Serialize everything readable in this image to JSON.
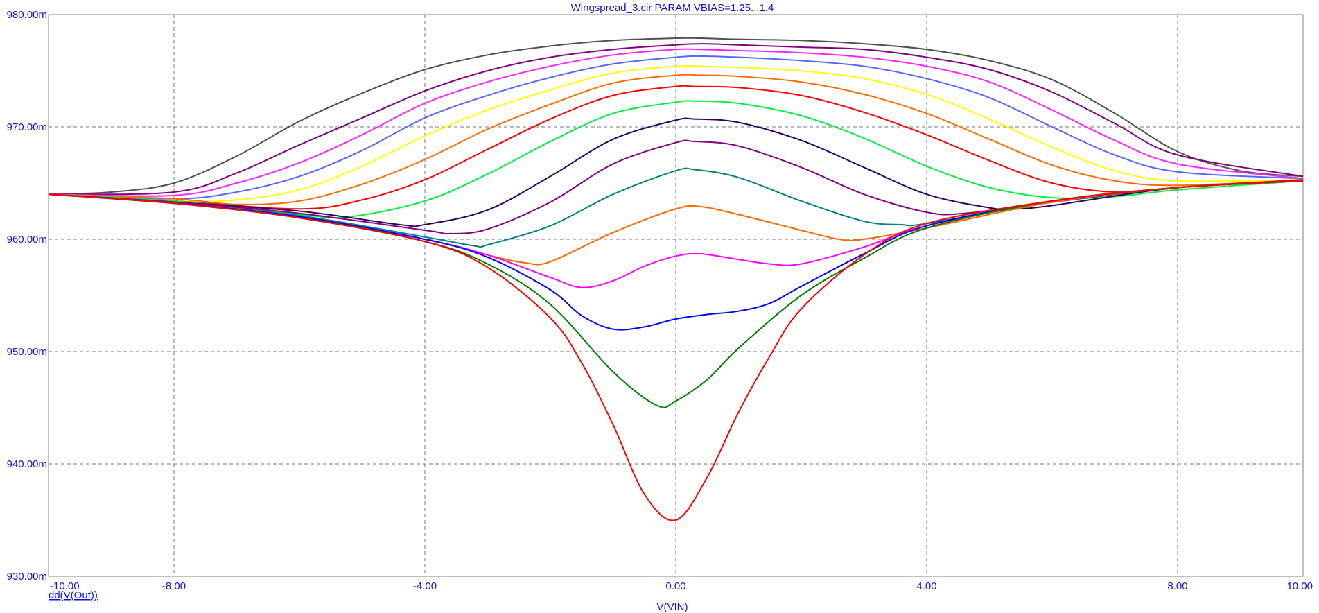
{
  "chart_data": {
    "type": "line",
    "title": "Wingspread_3.cir PARAM VBIAS=1.25...1.4",
    "xlabel": "V(VIN)",
    "ylabel": "dd(V(Out))",
    "xlim": [
      -10,
      10
    ],
    "ylim": [
      930,
      980
    ],
    "grid": true,
    "x_ticks": [
      -10,
      -8,
      -4,
      0,
      4,
      8,
      10
    ],
    "y_ticks": [
      930,
      940,
      950,
      960,
      970,
      980
    ],
    "x_tick_labels": [
      "-10.00",
      "-8.00",
      "-4.00",
      "0.00",
      "4.00",
      "8.00",
      "10.00"
    ],
    "y_tick_labels": [
      "930.00m",
      "940.00m",
      "950.00m",
      "960.00m",
      "970.00m",
      "980.00m"
    ],
    "series": [
      {
        "color": "#ff0000",
        "x": [
          -10,
          -8,
          -6,
          -4,
          -3,
          -2,
          -1.5,
          -1,
          -0.5,
          0,
          0.5,
          1,
          1.5,
          2,
          3,
          4,
          6,
          8,
          10
        ],
        "y": [
          964,
          963.2,
          961.9,
          959.8,
          957.5,
          953,
          949,
          943.5,
          937.3,
          935,
          938.8,
          944.6,
          949.6,
          953.8,
          958.6,
          961.4,
          963.4,
          964.6,
          965.2
        ]
      },
      {
        "color": "#008000",
        "x": [
          -10,
          -8,
          -6,
          -4,
          -3,
          -2,
          -1,
          -0.3,
          0,
          0.5,
          1,
          2,
          3,
          4,
          6,
          8,
          10
        ],
        "y": [
          964,
          963.2,
          961.9,
          959.8,
          957.8,
          954.2,
          948.2,
          945.2,
          945.6,
          947.5,
          950.3,
          955,
          958.3,
          961,
          963.4,
          964.6,
          965.2
        ]
      },
      {
        "color": "#0000ff",
        "x": [
          -10,
          -8,
          -6,
          -4,
          -3,
          -2,
          -1.5,
          -1,
          -0.5,
          0,
          0.5,
          1,
          1.5,
          2,
          3,
          4,
          6,
          8,
          10
        ],
        "y": [
          964,
          963.2,
          962,
          960,
          958.4,
          955.5,
          953.2,
          952,
          952.2,
          952.9,
          953.3,
          953.6,
          954.3,
          955.8,
          958.7,
          961.2,
          963.4,
          964.6,
          965.2
        ]
      },
      {
        "color": "#ff00ff",
        "x": [
          -10,
          -8,
          -6,
          -4,
          -3,
          -2,
          -1.5,
          -1,
          -0.5,
          0,
          0.4,
          1,
          1.5,
          2,
          3,
          4,
          6,
          8,
          10
        ],
        "y": [
          964,
          963.2,
          962,
          960,
          958.6,
          956.6,
          955.7,
          956.3,
          957.6,
          958.5,
          958.7,
          958.2,
          957.8,
          957.8,
          959.3,
          961.2,
          963.4,
          964.6,
          965.2
        ]
      },
      {
        "color": "#ff6600",
        "x": [
          -10,
          -8,
          -6,
          -4,
          -3,
          -2.4,
          -2,
          -1,
          0,
          0.4,
          1,
          2,
          2.6,
          3,
          4,
          6,
          8,
          10
        ],
        "y": [
          964,
          963.2,
          962,
          960,
          958.6,
          957.9,
          958,
          960.6,
          962.7,
          962.9,
          962.2,
          960.8,
          960,
          960,
          961,
          963.3,
          964.6,
          965.2
        ]
      },
      {
        "color": "#008080",
        "x": [
          -10,
          -8,
          -6,
          -4,
          -3.2,
          -3,
          -2,
          -1,
          0,
          0.3,
          1,
          2,
          3,
          3.6,
          4,
          6,
          8,
          10
        ],
        "y": [
          964,
          963.2,
          962.1,
          960.2,
          959.4,
          959.5,
          961.2,
          964,
          966.1,
          966.2,
          965.5,
          963.4,
          961.6,
          961.3,
          961.4,
          963.3,
          964.6,
          965.2
        ]
      },
      {
        "color": "#800080",
        "x": [
          -10,
          -8,
          -6,
          -4,
          -3.6,
          -3,
          -2,
          -1,
          0,
          0.3,
          1,
          2,
          3,
          4,
          4.6,
          6,
          8,
          10
        ],
        "y": [
          964,
          963.3,
          962.3,
          960.8,
          960.5,
          960.9,
          963.3,
          966.7,
          968.6,
          968.7,
          968.3,
          966.4,
          964,
          962.4,
          962.3,
          963.3,
          964.6,
          965.2
        ]
      },
      {
        "color": "#300060",
        "x": [
          -10,
          -8,
          -6,
          -4.4,
          -4,
          -3,
          -2,
          -1,
          0,
          0.3,
          1,
          2,
          3,
          4,
          5,
          5.4,
          6,
          8,
          10
        ],
        "y": [
          964,
          963.3,
          962.5,
          961.3,
          961.3,
          962.6,
          965.6,
          968.9,
          970.6,
          970.7,
          970.4,
          968.8,
          966.4,
          964,
          962.8,
          962.7,
          963,
          964.6,
          965.2
        ]
      },
      {
        "color": "#00ee44",
        "x": [
          -10,
          -8,
          -6,
          -5.2,
          -4,
          -3,
          -2,
          -1,
          0,
          0.3,
          1,
          2,
          3,
          4,
          5,
          6,
          7,
          8,
          10
        ],
        "y": [
          964,
          963.4,
          962.2,
          962,
          963.4,
          965.8,
          968.7,
          971.2,
          972.2,
          972.3,
          972.1,
          971,
          969,
          966.5,
          964.6,
          963.7,
          963.8,
          964.4,
          965.2
        ]
      },
      {
        "color": "#ff0000",
        "x": [
          -10,
          -8,
          -6,
          -5,
          -4,
          -3,
          -2,
          -1,
          0,
          0.3,
          1,
          2,
          3,
          4,
          5,
          6,
          7,
          8,
          10
        ],
        "y": [
          964,
          963.4,
          962.7,
          963.5,
          965.3,
          968,
          970.7,
          972.8,
          973.6,
          973.6,
          973.5,
          972.8,
          971.3,
          969.3,
          967,
          965,
          964.2,
          964.6,
          965.3
        ]
      },
      {
        "color": "#ff6a00",
        "x": [
          -10,
          -8,
          -7,
          -6,
          -5,
          -4,
          -3,
          -2,
          -1,
          0,
          0.4,
          1,
          2,
          3,
          4,
          5,
          6,
          7,
          8,
          10
        ],
        "y": [
          964,
          963.6,
          963.1,
          963.4,
          964.9,
          967.1,
          969.8,
          972,
          973.9,
          974.6,
          974.6,
          974.5,
          974,
          972.9,
          971.2,
          968.9,
          966.6,
          965.2,
          964.8,
          965.3
        ]
      },
      {
        "color": "#ffff00",
        "x": [
          -10,
          -8,
          -7,
          -6,
          -5,
          -4,
          -3,
          -2,
          -1,
          0,
          0.4,
          1,
          2,
          3,
          4,
          5,
          6,
          7,
          8,
          10
        ],
        "y": [
          964,
          963.4,
          963.5,
          964.4,
          966.5,
          969.2,
          971.5,
          973.3,
          974.8,
          975.4,
          975.4,
          975.3,
          975,
          974.3,
          972.9,
          970.7,
          968.2,
          966.1,
          965.2,
          965.3
        ]
      },
      {
        "color": "#5566ff",
        "x": [
          -10,
          -8,
          -7,
          -6,
          -5,
          -4,
          -3,
          -2,
          -1,
          0,
          0.4,
          1,
          2,
          3,
          4,
          5,
          6,
          7,
          8,
          10
        ],
        "y": [
          964,
          963.6,
          964.2,
          965.6,
          967.9,
          970.8,
          972.8,
          974.4,
          975.6,
          976.2,
          976.3,
          976.2,
          975.9,
          975.4,
          974.3,
          972.6,
          970,
          967.5,
          966,
          965.4
        ]
      },
      {
        "color": "#ff22ff",
        "x": [
          -10,
          -8,
          -7,
          -6,
          -5,
          -4,
          -3,
          -2,
          -1,
          0,
          0.4,
          1,
          2,
          3,
          4,
          5,
          6,
          7,
          8,
          10
        ],
        "y": [
          964,
          963.9,
          965,
          966.8,
          969.3,
          972.1,
          974,
          975.4,
          976.4,
          976.9,
          976.9,
          976.8,
          976.6,
          976.2,
          975.4,
          974,
          971.5,
          968.8,
          966.7,
          965.4
        ]
      },
      {
        "color": "#800080",
        "x": [
          -10,
          -8,
          -7,
          -6,
          -5,
          -4,
          -3,
          -2,
          -1,
          0,
          0.4,
          1,
          2,
          3,
          4,
          5,
          6,
          7,
          8,
          10
        ],
        "y": [
          964,
          964.2,
          965.9,
          968.4,
          970.8,
          973.2,
          975,
          976.2,
          976.9,
          977.3,
          977.4,
          977.3,
          977.1,
          976.9,
          976.2,
          975.1,
          973.1,
          970.3,
          967.5,
          965.6
        ]
      },
      {
        "color": "#505050",
        "x": [
          -10,
          -9,
          -8,
          -7,
          -6,
          -5,
          -4,
          -3,
          -2,
          -1,
          0,
          0.4,
          1,
          2,
          3,
          4,
          5,
          6,
          7,
          8,
          9,
          10
        ],
        "y": [
          964,
          964.2,
          965,
          967.4,
          970.5,
          973,
          975.1,
          976.4,
          977.2,
          977.7,
          977.9,
          977.9,
          977.8,
          977.7,
          977.4,
          976.9,
          975.9,
          974.2,
          971.2,
          967.8,
          966.1,
          965.6
        ]
      }
    ]
  }
}
